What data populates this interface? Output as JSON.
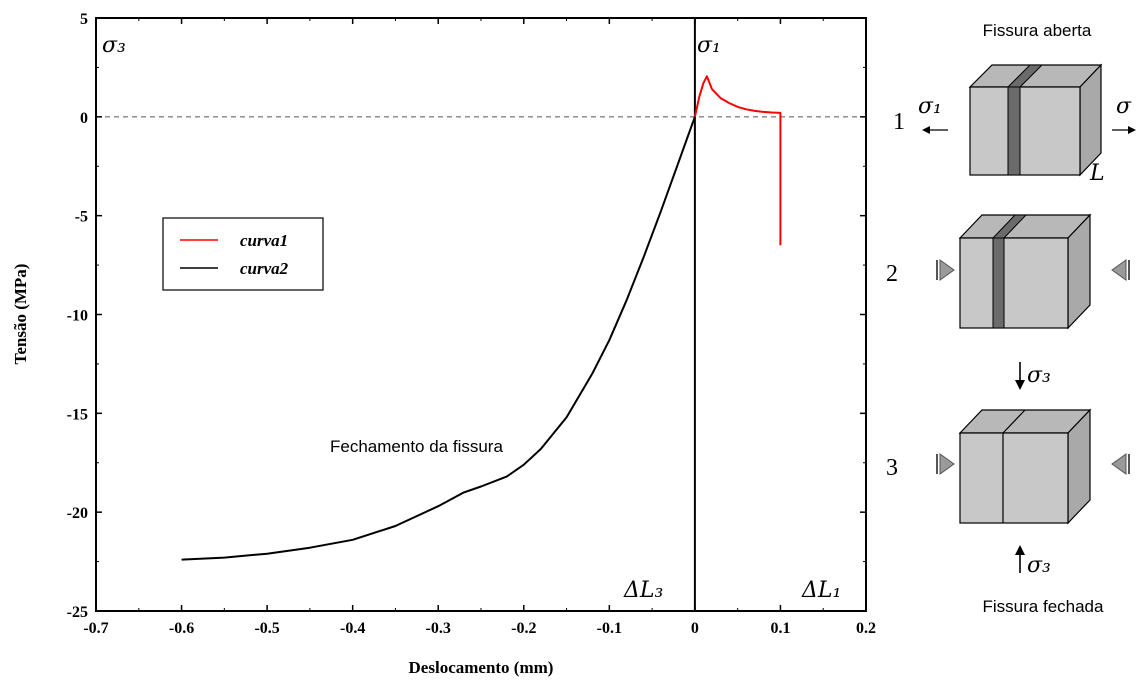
{
  "chart_data": {
    "type": "line",
    "xlabel": "Deslocamento (mm)",
    "ylabel": "Tensão (MPa)",
    "xlim": [
      -0.7,
      0.2
    ],
    "ylim": [
      -25,
      5
    ],
    "xticks": [
      "-0.7",
      "-0.6",
      "-0.5",
      "-0.4",
      "-0.3",
      "-0.2",
      "-0.1",
      "0",
      "0.1",
      "0.2"
    ],
    "yticks": [
      "5",
      "0",
      "-5",
      "-10",
      "-15",
      "-20",
      "-25"
    ],
    "legend_position": "upper-left",
    "series": [
      {
        "name": "curva1",
        "color": "#ff0000",
        "x": [
          0,
          0.005,
          0.01,
          0.014,
          0.02,
          0.03,
          0.04,
          0.05,
          0.06,
          0.07,
          0.08,
          0.09,
          0.1,
          0.1
        ],
        "y": [
          0,
          1.0,
          1.7,
          2.05,
          1.4,
          0.95,
          0.7,
          0.5,
          0.38,
          0.3,
          0.25,
          0.22,
          0.2,
          -6.5
        ]
      },
      {
        "name": "curva2",
        "color": "#000000",
        "x": [
          -0.6,
          -0.55,
          -0.5,
          -0.45,
          -0.4,
          -0.35,
          -0.3,
          -0.27,
          -0.25,
          -0.22,
          -0.2,
          -0.18,
          -0.15,
          -0.12,
          -0.1,
          -0.08,
          -0.06,
          -0.04,
          -0.02,
          -0.01,
          0
        ],
        "y": [
          -22.4,
          -22.3,
          -22.1,
          -21.8,
          -21.4,
          -20.7,
          -19.7,
          -19.0,
          -18.7,
          -18.2,
          -17.6,
          -16.8,
          -15.2,
          -13.0,
          -11.3,
          -9.3,
          -7.1,
          -4.8,
          -2.4,
          -1.2,
          0
        ]
      }
    ],
    "annotations": {
      "sigma3": "σ₃",
      "sigma1": "σ₁",
      "dl3": "ΔL₃",
      "dl1": "ΔL₁",
      "closing": "Fechamento da fissura"
    }
  },
  "legend": {
    "curva1": "curva1",
    "curva2": "curva2"
  },
  "diagram": {
    "open_label": "Fissura aberta",
    "closed_label": "Fissura fechada",
    "step1": "1",
    "step2": "2",
    "step3": "3",
    "sigma1_left": "σ₁",
    "sigma1_right": "σ",
    "length_label": "L",
    "sigma3_top": "σ₃",
    "sigma3_bottom": "σ₃",
    "colors": {
      "face_front": "#c8c8c8",
      "face_side": "#a9a9a9",
      "face_top": "#b8b8b8",
      "crack": "#6b6b6b"
    }
  }
}
